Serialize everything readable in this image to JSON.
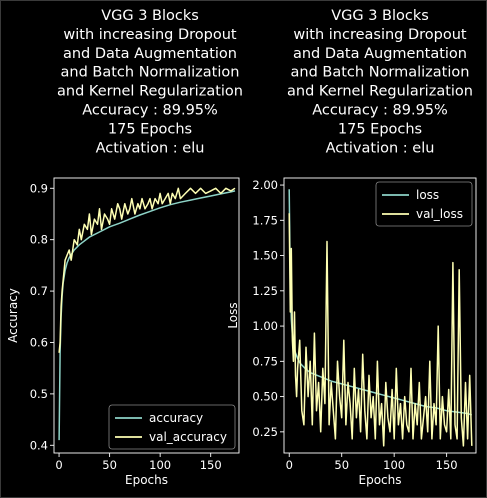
{
  "chart_data": [
    {
      "type": "line",
      "title_lines": [
        "VGG 3 Blocks",
        "with increasing Dropout",
        "and Data Augmentation",
        "and Batch Normalization",
        "and Kernel Regularization",
        "Accuracy : 89.95%",
        "175 Epochs",
        "Activation : elu"
      ],
      "xlabel": "Epochs",
      "ylabel": "Accuracy",
      "xlim": [
        -5,
        178
      ],
      "ylim": [
        0.385,
        0.92
      ],
      "xticks": [
        0,
        50,
        100,
        150
      ],
      "yticks": [
        0.4,
        0.5,
        0.6,
        0.7,
        0.8,
        0.9
      ],
      "ytick_labels": [
        "0.4",
        "0.5",
        "0.6",
        "0.7",
        "0.8",
        "0.9"
      ],
      "legend_position": "lower-right",
      "series": [
        {
          "name": "accuracy",
          "color": "#8dd3c7",
          "x": [
            0,
            1,
            2,
            3,
            4,
            6,
            8,
            10,
            15,
            20,
            30,
            40,
            50,
            60,
            70,
            80,
            90,
            100,
            110,
            120,
            130,
            140,
            150,
            160,
            170,
            174
          ],
          "y": [
            0.41,
            0.58,
            0.65,
            0.69,
            0.715,
            0.74,
            0.755,
            0.765,
            0.78,
            0.79,
            0.805,
            0.815,
            0.825,
            0.832,
            0.84,
            0.848,
            0.855,
            0.862,
            0.868,
            0.873,
            0.877,
            0.881,
            0.885,
            0.889,
            0.893,
            0.895
          ]
        },
        {
          "name": "val_accuracy",
          "color": "#feffb3",
          "x": [
            0,
            1,
            2,
            3,
            4,
            5,
            6,
            8,
            10,
            12,
            15,
            18,
            20,
            22,
            25,
            28,
            30,
            32,
            35,
            38,
            40,
            42,
            45,
            48,
            50,
            52,
            55,
            58,
            60,
            62,
            65,
            68,
            70,
            72,
            75,
            78,
            80,
            82,
            85,
            88,
            90,
            92,
            95,
            98,
            100,
            102,
            105,
            108,
            110,
            112,
            115,
            118,
            120,
            125,
            130,
            135,
            140,
            145,
            150,
            155,
            160,
            165,
            170,
            174
          ],
          "y": [
            0.58,
            0.6,
            0.67,
            0.7,
            0.72,
            0.74,
            0.76,
            0.77,
            0.78,
            0.76,
            0.8,
            0.79,
            0.82,
            0.8,
            0.83,
            0.82,
            0.85,
            0.81,
            0.84,
            0.83,
            0.86,
            0.82,
            0.85,
            0.84,
            0.83,
            0.86,
            0.84,
            0.87,
            0.86,
            0.84,
            0.87,
            0.85,
            0.86,
            0.88,
            0.85,
            0.87,
            0.86,
            0.88,
            0.86,
            0.87,
            0.88,
            0.86,
            0.88,
            0.87,
            0.89,
            0.87,
            0.88,
            0.89,
            0.87,
            0.89,
            0.88,
            0.9,
            0.88,
            0.89,
            0.9,
            0.89,
            0.9,
            0.89,
            0.895,
            0.9,
            0.89,
            0.9,
            0.895,
            0.9
          ]
        }
      ]
    },
    {
      "type": "line",
      "title_lines": [
        "VGG 3 Blocks",
        "with increasing Dropout",
        "and Data Augmentation",
        "and Batch Normalization",
        "and Kernel Regularization",
        "Accuracy : 89.95%",
        "175 Epochs",
        "Activation : elu"
      ],
      "xlabel": "Epochs",
      "ylabel": "Loss",
      "xlim": [
        -5,
        178
      ],
      "ylim": [
        0.1,
        2.05
      ],
      "xticks": [
        0,
        50,
        100,
        150
      ],
      "yticks": [
        0.25,
        0.5,
        0.75,
        1.0,
        1.25,
        1.5,
        1.75,
        2.0
      ],
      "ytick_labels": [
        "0.25",
        "0.50",
        "0.75",
        "1.00",
        "1.25",
        "1.50",
        "1.75",
        "2.00"
      ],
      "legend_position": "upper-right",
      "series": [
        {
          "name": "loss",
          "color": "#8dd3c7",
          "x": [
            0,
            1,
            2,
            3,
            4,
            6,
            8,
            10,
            15,
            20,
            30,
            40,
            50,
            60,
            70,
            80,
            90,
            100,
            110,
            120,
            130,
            140,
            150,
            160,
            170,
            174
          ],
          "y": [
            1.97,
            1.3,
            1.05,
            0.93,
            0.87,
            0.81,
            0.77,
            0.74,
            0.7,
            0.67,
            0.64,
            0.61,
            0.59,
            0.57,
            0.55,
            0.53,
            0.51,
            0.49,
            0.47,
            0.45,
            0.43,
            0.42,
            0.4,
            0.39,
            0.38,
            0.37
          ]
        },
        {
          "name": "val_loss",
          "color": "#feffb3",
          "x": [
            0,
            1,
            2,
            3,
            4,
            5,
            6,
            7,
            8,
            10,
            12,
            14,
            16,
            18,
            20,
            22,
            24,
            26,
            28,
            30,
            32,
            34,
            36,
            38,
            40,
            42,
            44,
            46,
            48,
            50,
            52,
            54,
            56,
            58,
            60,
            62,
            64,
            66,
            68,
            70,
            72,
            74,
            76,
            78,
            80,
            82,
            84,
            86,
            88,
            90,
            92,
            94,
            96,
            98,
            100,
            102,
            104,
            106,
            108,
            110,
            112,
            114,
            116,
            118,
            120,
            122,
            124,
            126,
            128,
            130,
            132,
            134,
            136,
            138,
            140,
            142,
            144,
            146,
            148,
            150,
            152,
            154,
            156,
            158,
            160,
            162,
            164,
            166,
            168,
            170,
            172,
            174
          ],
          "y": [
            1.8,
            1.1,
            1.55,
            0.9,
            0.75,
            1.1,
            0.65,
            0.5,
            0.7,
            0.9,
            0.4,
            0.3,
            0.85,
            0.5,
            0.75,
            0.3,
            0.95,
            0.4,
            0.6,
            0.25,
            0.7,
            0.45,
            1.6,
            0.3,
            0.6,
            0.4,
            0.2,
            0.75,
            0.5,
            0.35,
            0.9,
            0.3,
            0.6,
            0.45,
            0.2,
            0.7,
            0.35,
            0.55,
            0.25,
            0.8,
            0.4,
            0.2,
            0.65,
            0.35,
            0.5,
            0.2,
            0.75,
            0.3,
            0.45,
            0.15,
            0.6,
            0.35,
            0.25,
            0.55,
            0.2,
            0.7,
            0.3,
            0.45,
            0.2,
            0.5,
            0.3,
            0.25,
            0.7,
            0.2,
            0.45,
            0.3,
            0.6,
            0.2,
            0.35,
            0.5,
            0.25,
            0.75,
            0.2,
            0.45,
            0.3,
            1.0,
            0.2,
            0.5,
            0.3,
            0.25,
            0.55,
            0.2,
            1.45,
            0.3,
            0.2,
            1.4,
            0.35,
            0.15,
            0.6,
            0.2,
            0.65,
            0.15
          ]
        }
      ]
    }
  ]
}
